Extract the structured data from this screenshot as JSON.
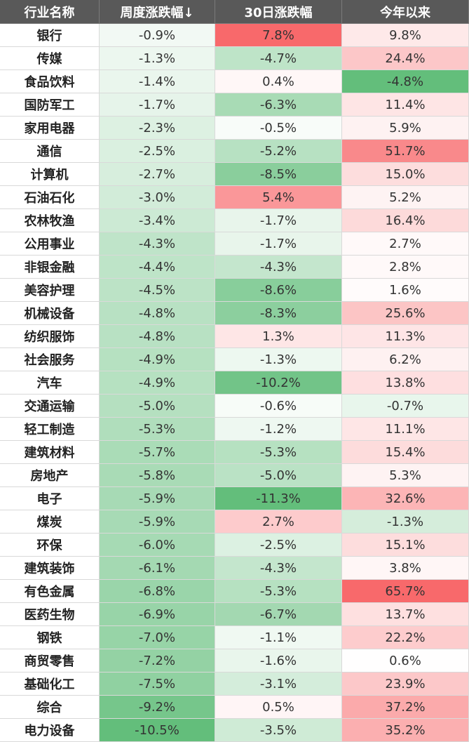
{
  "table": {
    "header": [
      "行业名称",
      "周度涨跌幅↓",
      "30日涨跌幅",
      "今年以来"
    ],
    "rows": [
      [
        "银行",
        "-0.9%",
        "7.8%",
        "9.8%"
      ],
      [
        "传媒",
        "-1.3%",
        "-4.7%",
        "24.4%"
      ],
      [
        "食品饮料",
        "-1.4%",
        "0.4%",
        "-4.8%"
      ],
      [
        "国防军工",
        "-1.7%",
        "-6.3%",
        "11.4%"
      ],
      [
        "家用电器",
        "-2.3%",
        "-0.5%",
        "5.9%"
      ],
      [
        "通信",
        "-2.5%",
        "-5.2%",
        "51.7%"
      ],
      [
        "计算机",
        "-2.7%",
        "-8.5%",
        "15.0%"
      ],
      [
        "石油石化",
        "-3.0%",
        "5.4%",
        "5.2%"
      ],
      [
        "农林牧渔",
        "-3.4%",
        "-1.7%",
        "16.4%"
      ],
      [
        "公用事业",
        "-4.3%",
        "-1.7%",
        "2.7%"
      ],
      [
        "非银金融",
        "-4.4%",
        "-4.3%",
        "2.8%"
      ],
      [
        "美容护理",
        "-4.5%",
        "-8.6%",
        "1.6%"
      ],
      [
        "机械设备",
        "-4.8%",
        "-8.3%",
        "25.6%"
      ],
      [
        "纺织服饰",
        "-4.8%",
        "1.3%",
        "11.3%"
      ],
      [
        "社会服务",
        "-4.9%",
        "-1.3%",
        "6.2%"
      ],
      [
        "汽车",
        "-4.9%",
        "-10.2%",
        "13.8%"
      ],
      [
        "交通运输",
        "-5.0%",
        "-0.6%",
        "-0.7%"
      ],
      [
        "轻工制造",
        "-5.3%",
        "-1.2%",
        "11.1%"
      ],
      [
        "建筑材料",
        "-5.7%",
        "-5.3%",
        "15.4%"
      ],
      [
        "房地产",
        "-5.8%",
        "-5.0%",
        "5.3%"
      ],
      [
        "电子",
        "-5.9%",
        "-11.3%",
        "32.6%"
      ],
      [
        "煤炭",
        "-5.9%",
        "2.7%",
        "-1.3%"
      ],
      [
        "环保",
        "-6.0%",
        "-2.5%",
        "15.1%"
      ],
      [
        "建筑装饰",
        "-6.1%",
        "-4.3%",
        "3.8%"
      ],
      [
        "有色金属",
        "-6.8%",
        "-5.3%",
        "65.7%"
      ],
      [
        "医药生物",
        "-6.9%",
        "-6.7%",
        "13.7%"
      ],
      [
        "钢铁",
        "-7.0%",
        "-1.1%",
        "22.2%"
      ],
      [
        "商贸零售",
        "-7.2%",
        "-1.6%",
        "0.6%"
      ],
      [
        "基础化工",
        "-7.5%",
        "-3.1%",
        "23.9%"
      ],
      [
        "综合",
        "-9.2%",
        "0.5%",
        "37.2%"
      ],
      [
        "电力设备",
        "-10.5%",
        "-3.5%",
        "35.2%"
      ]
    ]
  }
}
